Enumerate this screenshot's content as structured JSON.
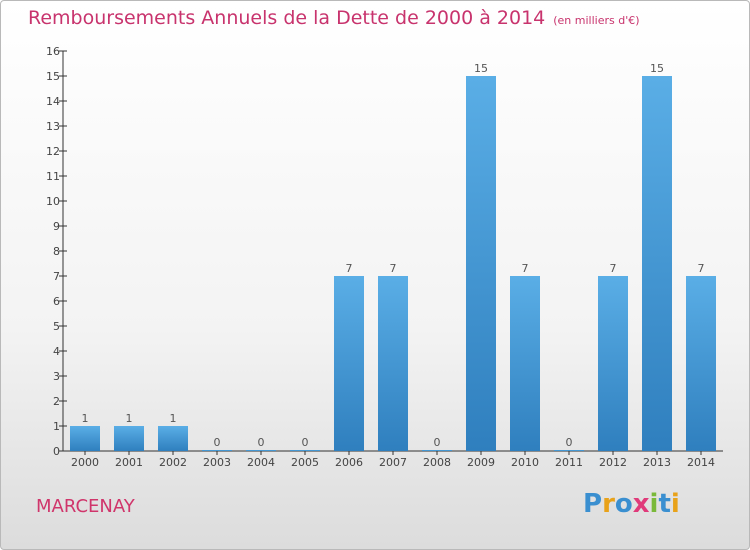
{
  "chart_data": {
    "type": "bar",
    "title": "Remboursements Annuels de la Dette de 2000 à 2014",
    "subtitle": "(en milliers d'€)",
    "categories": [
      "2000",
      "2001",
      "2002",
      "2003",
      "2004",
      "2005",
      "2006",
      "2007",
      "2008",
      "2009",
      "2010",
      "2011",
      "2012",
      "2013",
      "2014"
    ],
    "values": [
      1,
      1,
      1,
      0,
      0,
      0,
      7,
      7,
      0,
      15,
      7,
      0,
      7,
      15,
      7
    ],
    "ylim": [
      0,
      16
    ],
    "yticks": [
      0,
      1,
      2,
      3,
      4,
      5,
      6,
      7,
      8,
      9,
      10,
      11,
      12,
      13,
      14,
      15,
      16
    ],
    "grid": false,
    "bar_color_top": "#5aaee6",
    "bar_color_bottom": "#2f7fbe"
  },
  "footer": {
    "city": "MARCENAY"
  },
  "logo": {
    "text": "Proxiti",
    "letters": [
      {
        "char": "P",
        "color": "#3a8fd0"
      },
      {
        "char": "r",
        "color": "#e8a21a"
      },
      {
        "char": "o",
        "color": "#3a8fd0"
      },
      {
        "char": "x",
        "color": "#e03a7a"
      },
      {
        "char": "i",
        "color": "#7ab93a"
      },
      {
        "char": "t",
        "color": "#3a8fd0"
      },
      {
        "char": "i",
        "color": "#e8a21a"
      }
    ]
  },
  "colors": {
    "title": "#c8336d",
    "axis": "#333333"
  }
}
